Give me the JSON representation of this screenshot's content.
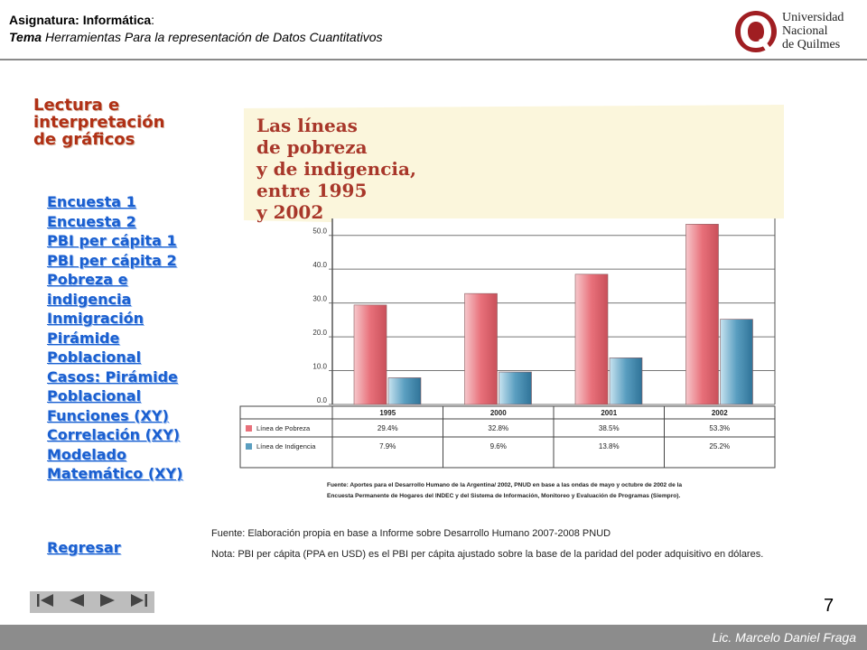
{
  "header": {
    "subject_label": "Asignatura: ",
    "subject_value": "Informática",
    "subject_suffix": ":",
    "topic_label": "Tema",
    "topic_value": " Herramientas Para la representación de Datos Cuantitativos"
  },
  "logo": {
    "line1": "Universidad",
    "line2": "Nacional",
    "line3": "de Quilmes"
  },
  "sidebar": {
    "title": "Lectura e interpretación de gráficos",
    "links": [
      "Encuesta 1",
      "Encuesta 2",
      "PBI per cápita 1",
      "PBI per cápita 2",
      "Pobreza e indigencia",
      "Inmigración",
      "Pirámide Poblacional",
      "Casos: Pirámide Poblacional",
      "Funciones (XY)",
      "Correlación (XY)",
      "Modelado Matemático (XY)"
    ],
    "back": "Regresar"
  },
  "chart_data": {
    "type": "bar",
    "title": [
      "Las líneas",
      "de pobreza",
      "y de indigencia,",
      "entre 1995",
      "y 2002"
    ],
    "categories": [
      "1995",
      "2000",
      "2001",
      "2002"
    ],
    "series": [
      {
        "name": "Línea de Pobreza",
        "values": [
          29.4,
          32.8,
          38.5,
          53.3
        ],
        "labels": [
          "29.4%",
          "32.8%",
          "38.5%",
          "53.3%"
        ],
        "color": "#e8707a"
      },
      {
        "name": "Línea de Indigencia",
        "values": [
          7.9,
          9.6,
          13.8,
          25.2
        ],
        "labels": [
          "7.9%",
          "9.6%",
          "13.8%",
          "25.2%"
        ],
        "color": "#5a9ec0"
      }
    ],
    "yticks": [
      "0.0",
      "10.0",
      "20.0",
      "30.0",
      "40.0",
      "50.0"
    ],
    "ylim": [
      0,
      55
    ],
    "grid": true,
    "source_lines": [
      "Fuente: Aportes para el Desarrollo Humano de la Argentina/ 2002, PNUD en base a las ondas de mayo y octubre de 2002 de la",
      "Encuesta Permanente de Hogares del INDEC y del Sistema de Información, Monitoreo y Evaluación de Programas (Siempro)."
    ]
  },
  "notes": {
    "source": "Fuente: Elaboración propia en base a Informe sobre Desarrollo Humano 2007-2008  PNUD",
    "nota": "Nota: PBI per cápita (PPA en USD) es el PBI per cápita ajustado sobre la base de la paridad del poder adquisitivo en dólares."
  },
  "page_number": "7",
  "footer": "Lic. Marcelo Daniel Fraga",
  "nav_icons": [
    "first-slide-icon",
    "previous-slide-icon",
    "next-slide-icon",
    "last-slide-icon"
  ]
}
